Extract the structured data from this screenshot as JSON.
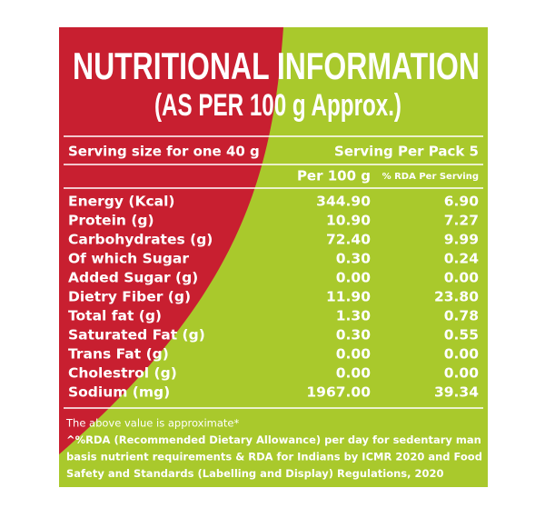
{
  "header": {
    "title": "NUTRITIONAL INFORMATION",
    "subtitle": "(AS PER 100 g Approx.)"
  },
  "serving": {
    "size": "Serving size for one 40 g",
    "per_pack": "Serving Per Pack 5"
  },
  "table": {
    "columns": [
      "Per 100 g",
      "% RDA Per Serving"
    ],
    "rows": [
      [
        "Energy (Kcal)",
        "344.90",
        "6.90"
      ],
      [
        "Protein (g)",
        "10.90",
        "7.27"
      ],
      [
        "Carbohydrates (g)",
        "72.40",
        "9.99"
      ],
      [
        "Of which Sugar",
        "0.30",
        "0.24"
      ],
      [
        "Added Sugar (g)",
        "0.00",
        "0.00"
      ],
      [
        "Dietry Fiber (g)",
        "11.90",
        "23.80"
      ],
      [
        "Total fat (g)",
        "1.30",
        "0.78"
      ],
      [
        "Saturated Fat (g)",
        "0.30",
        "0.55"
      ],
      [
        "Trans Fat (g)",
        "0.00",
        "0.00"
      ],
      [
        "Cholestrol (g)",
        "0.00",
        "0.00"
      ],
      [
        "Sodium (mg)",
        "1967.00",
        "39.34"
      ]
    ]
  },
  "footnotes": [
    "The above value is approximate*",
    "^%RDA (Recommended Dietary Allowance) per day for sedentary man",
    "basis nutrient requirements & RDA for Indians by ICMR 2020 and Food",
    "Safety and Standards (Labelling and Display) Regulations, 2020"
  ]
}
